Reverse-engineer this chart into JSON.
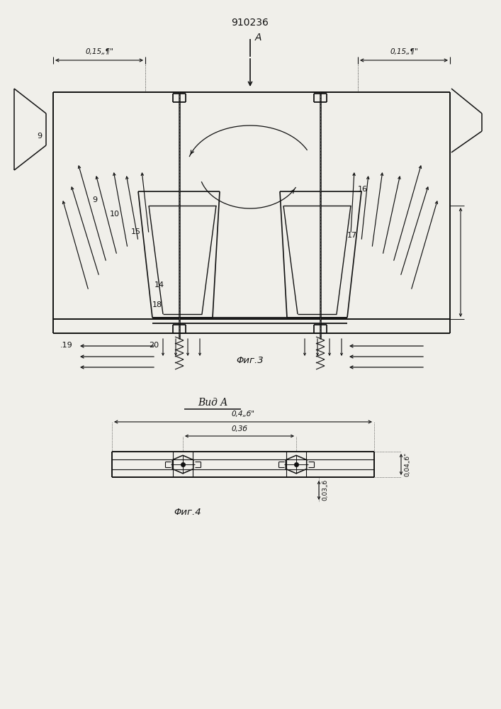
{
  "title": "910236",
  "vid_a_label": "Вид A",
  "fig3_label": "Φиг.3",
  "fig4_label": "Φиг.4",
  "arrow_A_label": "A",
  "dim_015b": "0,15„¶\"",
  "bg_color": "#f0efea",
  "line_color": "#111111"
}
